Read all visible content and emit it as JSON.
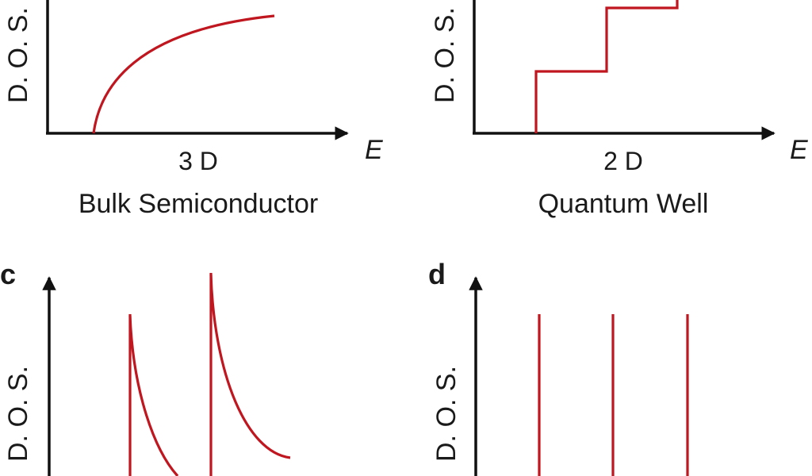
{
  "panels": {
    "a": {
      "panel_letter": "",
      "y_label": "D. O. S.",
      "x_label": "E",
      "dimension_label": "3 D",
      "caption": "Bulk Semiconductor"
    },
    "b": {
      "panel_letter": "",
      "y_label": "D. O. S.",
      "x_label": "E",
      "dimension_label": "2 D",
      "caption": "Quantum Well"
    },
    "c": {
      "panel_letter": "c",
      "y_label": "D. O. S."
    },
    "d": {
      "panel_letter": "d",
      "y_label": "D. O. S."
    }
  },
  "colors": {
    "axis": "#111111",
    "curve": "#c0161f"
  }
}
